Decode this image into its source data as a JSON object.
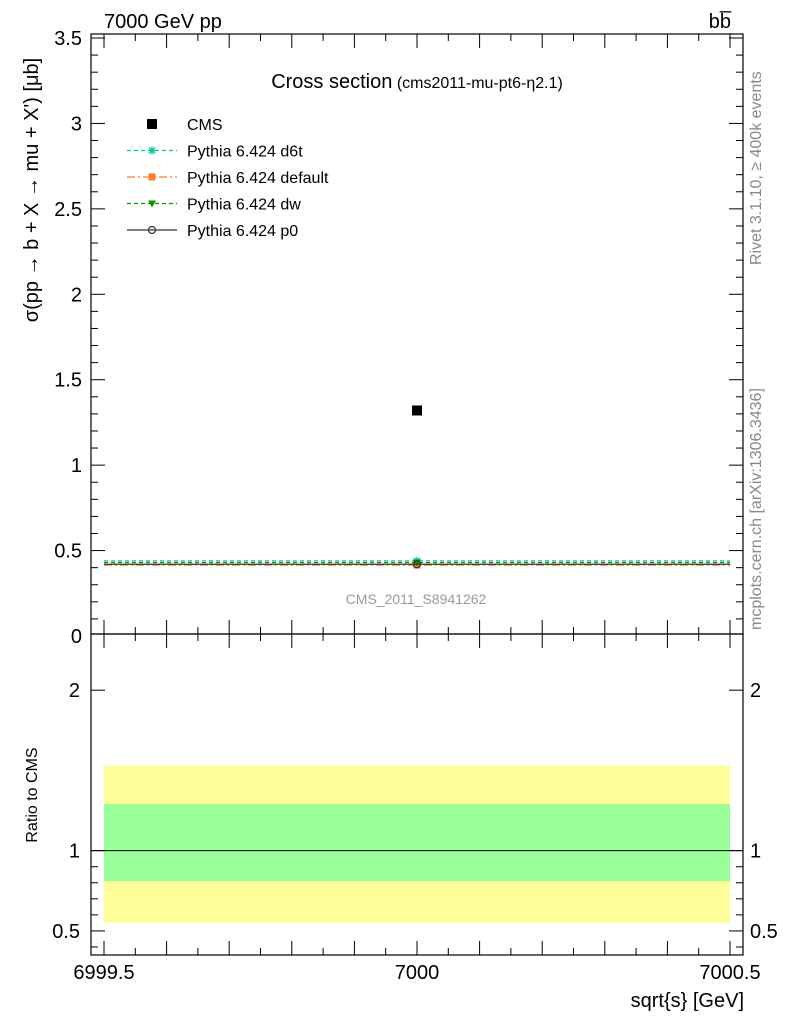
{
  "header": {
    "left": "7000 GeV pp",
    "right": "bb̅"
  },
  "side_labels": {
    "upper": "Rivet 3.1.10, ≥ 400k events",
    "lower": "mcplots.cern.ch [arXiv:1306.3436]"
  },
  "chart_data": [
    {
      "type": "scatter",
      "title": "Cross section",
      "subtitle": "(cms2011-mu-pt6-η2.1)",
      "watermark": "CMS_2011_S8941262",
      "xlabel": "",
      "ylabel": "σ(pp → b + X → mu + X') [μb]",
      "xlim": [
        6999.5,
        7000.5
      ],
      "ylim": [
        0,
        3.5
      ],
      "yticks": [
        0,
        0.5,
        1,
        1.5,
        2,
        2.5,
        3,
        3.5
      ],
      "ytick_labels": [
        "0",
        "0.5",
        "1",
        "1.5",
        "2",
        "2.5",
        "3",
        "3.5"
      ],
      "legend_position": "top-left",
      "series": [
        {
          "name": "CMS",
          "x": [
            7000
          ],
          "y": [
            1.32
          ],
          "color": "#000000",
          "marker": "square",
          "line": "none"
        },
        {
          "name": "Pythia 6.424 d6t",
          "x": [
            6999.5,
            7000,
            7000.5
          ],
          "y": [
            0.44,
            0.44,
            0.44
          ],
          "color": "#00cc99",
          "marker": "star",
          "line": "dashed"
        },
        {
          "name": "Pythia 6.424 default",
          "x": [
            6999.5,
            7000,
            7000.5
          ],
          "y": [
            0.415,
            0.415,
            0.415
          ],
          "color": "#ff7f2a",
          "marker": "filled-square",
          "line": "dashdot"
        },
        {
          "name": "Pythia 6.424 dw",
          "x": [
            6999.5,
            7000,
            7000.5
          ],
          "y": [
            0.43,
            0.43,
            0.43
          ],
          "color": "#009900",
          "marker": "triangle-down",
          "line": "dashed"
        },
        {
          "name": "Pythia 6.424 p0",
          "x": [
            6999.5,
            7000,
            7000.5
          ],
          "y": [
            0.42,
            0.42,
            0.42
          ],
          "color": "#333333",
          "marker": "open-circle",
          "line": "solid"
        }
      ]
    },
    {
      "type": "area",
      "xlabel": "sqrt{s} [GeV]",
      "ylabel": "Ratio to CMS",
      "xlim": [
        6999.5,
        7000.5
      ],
      "ylim": [
        0.35,
        2.35
      ],
      "xticks": [
        6999.5,
        7000,
        7000.5
      ],
      "xtick_labels": [
        "6999.5",
        "7000",
        "7000.5"
      ],
      "yticks": [
        0.5,
        1,
        2
      ],
      "ytick_labels": [
        "0.5",
        "1",
        "2"
      ],
      "bands": [
        {
          "name": "total uncertainty",
          "lower": 0.55,
          "upper": 1.53,
          "color": "#ffff99"
        },
        {
          "name": "stat uncertainty",
          "lower": 0.81,
          "upper": 1.29,
          "color": "#99ff99"
        }
      ],
      "reference_line": 1.0
    }
  ]
}
